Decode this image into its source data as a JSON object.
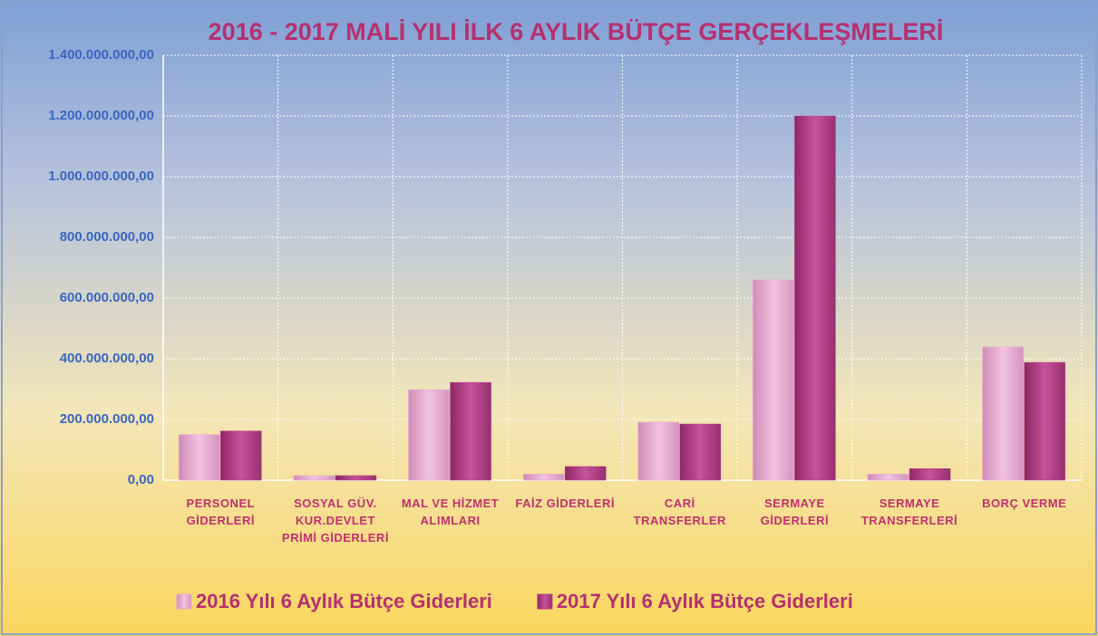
{
  "chart_data": {
    "type": "bar",
    "title": "2016 - 2017 MALİ YILI İLK 6 AYLIK BÜTÇE GERÇEKLEŞMELERİ",
    "categories": [
      "PERSONEL GİDERLERİ",
      "SOSYAL GÜV. KUR.DEVLET PRİMİ GİDERLERİ",
      "MAL VE HİZMET ALIMLARI",
      "FAİZ GİDERLERİ",
      "CARİ TRANSFERLER",
      "SERMAYE GİDERLERİ",
      "SERMAYE TRANSFERLERİ",
      "BORÇ VERME"
    ],
    "series": [
      {
        "name": "2016 Yılı 6 Aylık Bütçe Giderleri",
        "color": "#e6a6cf",
        "values": [
          150000000,
          15000000,
          298000000,
          20000000,
          191000000,
          660000000,
          20000000,
          439000000
        ]
      },
      {
        "name": "2017 Yılı 6 Aylık Bütçe Giderleri",
        "color": "#b23b82",
        "values": [
          162000000,
          15000000,
          322000000,
          45000000,
          185000000,
          1200000000,
          38000000,
          388000000
        ]
      }
    ],
    "ylim": [
      0,
      1400000000
    ],
    "yticks": [
      {
        "value": 0,
        "label": "0,00"
      },
      {
        "value": 200000000,
        "label": "200.000.000,00"
      },
      {
        "value": 400000000,
        "label": "400.000.000,00"
      },
      {
        "value": 600000000,
        "label": "600.000.000,00"
      },
      {
        "value": 800000000,
        "label": "800.000.000,00"
      },
      {
        "value": 1000000000,
        "label": "1.000.000.000,00"
      },
      {
        "value": 1200000000,
        "label": "1.200.000.000,00"
      },
      {
        "value": 1400000000,
        "label": "1.400.000.000,00"
      }
    ],
    "grid": true,
    "legend": "bottom"
  }
}
